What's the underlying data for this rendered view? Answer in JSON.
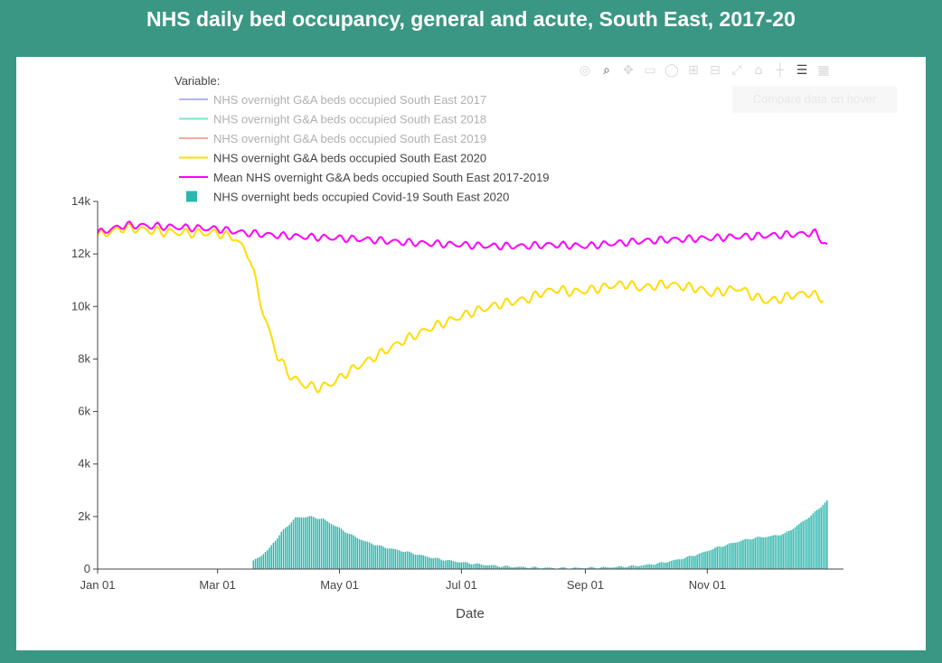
{
  "page": {
    "title": "NHS daily bed occupancy, general and acute, South East, 2017-20"
  },
  "modebar": {
    "icons": [
      "camera-icon",
      "zoom-icon",
      "pan-icon",
      "box-select-icon",
      "lasso-icon",
      "zoom-in-icon",
      "zoom-out-icon",
      "autoscale-icon",
      "reset-axes-icon",
      "spike-lines-icon",
      "compare-hover-icon",
      "plotly-logo-icon"
    ],
    "tooltip": "Compare data on hover"
  },
  "chart_data": {
    "type": "line",
    "title": "",
    "xlabel": "Date",
    "ylabel": "",
    "x_range": [
      "2020-01-01",
      "2020-12-31"
    ],
    "ylim": [
      0,
      14000
    ],
    "x_ticks": [
      {
        "date": "2020-01-01",
        "label": "Jan 01"
      },
      {
        "date": "2020-03-01",
        "label": "Mar 01"
      },
      {
        "date": "2020-05-01",
        "label": "May 01"
      },
      {
        "date": "2020-07-01",
        "label": "Jul 01"
      },
      {
        "date": "2020-09-01",
        "label": "Sep 01"
      },
      {
        "date": "2020-11-01",
        "label": "Nov 01"
      }
    ],
    "y_ticks": [
      {
        "value": 0,
        "label": "0"
      },
      {
        "value": 2000,
        "label": "2k"
      },
      {
        "value": 4000,
        "label": "4k"
      },
      {
        "value": 6000,
        "label": "6k"
      },
      {
        "value": 8000,
        "label": "8k"
      },
      {
        "value": 10000,
        "label": "10k"
      },
      {
        "value": 12000,
        "label": "12k"
      },
      {
        "value": 14000,
        "label": "14k"
      }
    ],
    "grid": false,
    "legend": {
      "title": "Variable:",
      "placement": "top-left"
    },
    "series": [
      {
        "name": "NHS overnight G&A beds occupied South East 2017",
        "type": "line",
        "color": "#636efa",
        "visible": false
      },
      {
        "name": "NHS overnight G&A beds occupied South East 2018",
        "type": "line",
        "color": "#00cc96",
        "visible": false
      },
      {
        "name": "NHS overnight G&A beds occupied South East 2019",
        "type": "line",
        "color": "#ef553b",
        "visible": false
      },
      {
        "name": "NHS overnight G&A beds occupied South East 2020",
        "type": "line",
        "color": "#ffdd00",
        "visible": true,
        "points": [
          [
            "2020-01-01",
            12700
          ],
          [
            "2020-01-15",
            13000
          ],
          [
            "2020-02-01",
            12850
          ],
          [
            "2020-02-15",
            12800
          ],
          [
            "2020-03-01",
            12800
          ],
          [
            "2020-03-10",
            12600
          ],
          [
            "2020-03-17",
            11900
          ],
          [
            "2020-03-24",
            9700
          ],
          [
            "2020-03-31",
            8100
          ],
          [
            "2020-04-07",
            7300
          ],
          [
            "2020-04-14",
            7000
          ],
          [
            "2020-04-21",
            6900
          ],
          [
            "2020-04-28",
            7100
          ],
          [
            "2020-05-05",
            7500
          ],
          [
            "2020-05-12",
            7800
          ],
          [
            "2020-05-19",
            8100
          ],
          [
            "2020-05-26",
            8400
          ],
          [
            "2020-06-02",
            8700
          ],
          [
            "2020-06-09",
            8950
          ],
          [
            "2020-06-16",
            9200
          ],
          [
            "2020-06-23",
            9400
          ],
          [
            "2020-06-30",
            9600
          ],
          [
            "2020-07-07",
            9800
          ],
          [
            "2020-07-14",
            9950
          ],
          [
            "2020-07-21",
            10100
          ],
          [
            "2020-07-28",
            10200
          ],
          [
            "2020-08-04",
            10300
          ],
          [
            "2020-08-11",
            10550
          ],
          [
            "2020-08-18",
            10650
          ],
          [
            "2020-08-25",
            10550
          ],
          [
            "2020-09-01",
            10600
          ],
          [
            "2020-09-08",
            10700
          ],
          [
            "2020-09-15",
            10800
          ],
          [
            "2020-09-22",
            10850
          ],
          [
            "2020-09-29",
            10700
          ],
          [
            "2020-10-06",
            10800
          ],
          [
            "2020-10-13",
            10850
          ],
          [
            "2020-10-20",
            10750
          ],
          [
            "2020-10-27",
            10700
          ],
          [
            "2020-11-03",
            10500
          ],
          [
            "2020-11-10",
            10600
          ],
          [
            "2020-11-17",
            10700
          ],
          [
            "2020-11-24",
            10400
          ],
          [
            "2020-12-01",
            10200
          ],
          [
            "2020-12-08",
            10300
          ],
          [
            "2020-12-15",
            10450
          ],
          [
            "2020-12-22",
            10500
          ],
          [
            "2020-12-29",
            10300
          ]
        ]
      },
      {
        "name": "Mean NHS overnight G&A beds occupied South East 2017-2019",
        "type": "line",
        "color": "#ff00ff",
        "visible": true,
        "points": [
          [
            "2020-01-01",
            12800
          ],
          [
            "2020-01-15",
            13100
          ],
          [
            "2020-02-01",
            13050
          ],
          [
            "2020-02-15",
            13000
          ],
          [
            "2020-03-01",
            12950
          ],
          [
            "2020-03-15",
            12800
          ],
          [
            "2020-04-01",
            12700
          ],
          [
            "2020-04-15",
            12650
          ],
          [
            "2020-05-01",
            12600
          ],
          [
            "2020-05-15",
            12550
          ],
          [
            "2020-06-01",
            12450
          ],
          [
            "2020-06-15",
            12400
          ],
          [
            "2020-07-01",
            12350
          ],
          [
            "2020-07-15",
            12300
          ],
          [
            "2020-08-01",
            12300
          ],
          [
            "2020-08-15",
            12350
          ],
          [
            "2020-09-01",
            12300
          ],
          [
            "2020-09-15",
            12400
          ],
          [
            "2020-10-01",
            12500
          ],
          [
            "2020-10-15",
            12550
          ],
          [
            "2020-11-01",
            12600
          ],
          [
            "2020-11-15",
            12650
          ],
          [
            "2020-12-01",
            12700
          ],
          [
            "2020-12-15",
            12750
          ],
          [
            "2020-12-25",
            12800
          ],
          [
            "2020-12-31",
            12300
          ]
        ]
      },
      {
        "name": "NHS overnight beds occupied Covid-19 South East 2020",
        "type": "bar",
        "color": "#2ab7ad",
        "visible": true,
        "points": [
          [
            "2020-03-19",
            300
          ],
          [
            "2020-03-26",
            700
          ],
          [
            "2020-04-02",
            1400
          ],
          [
            "2020-04-09",
            1950
          ],
          [
            "2020-04-16",
            2000
          ],
          [
            "2020-04-23",
            1900
          ],
          [
            "2020-04-30",
            1600
          ],
          [
            "2020-05-07",
            1300
          ],
          [
            "2020-05-14",
            1050
          ],
          [
            "2020-05-21",
            880
          ],
          [
            "2020-05-28",
            760
          ],
          [
            "2020-06-04",
            650
          ],
          [
            "2020-06-11",
            520
          ],
          [
            "2020-06-18",
            410
          ],
          [
            "2020-06-25",
            320
          ],
          [
            "2020-07-02",
            250
          ],
          [
            "2020-07-09",
            190
          ],
          [
            "2020-07-16",
            140
          ],
          [
            "2020-07-23",
            100
          ],
          [
            "2020-07-30",
            80
          ],
          [
            "2020-08-06",
            60
          ],
          [
            "2020-08-13",
            45
          ],
          [
            "2020-08-20",
            40
          ],
          [
            "2020-08-27",
            40
          ],
          [
            "2020-09-03",
            50
          ],
          [
            "2020-09-10",
            60
          ],
          [
            "2020-09-17",
            80
          ],
          [
            "2020-09-24",
            110
          ],
          [
            "2020-10-01",
            150
          ],
          [
            "2020-10-08",
            220
          ],
          [
            "2020-10-15",
            320
          ],
          [
            "2020-10-22",
            450
          ],
          [
            "2020-10-29",
            600
          ],
          [
            "2020-11-05",
            800
          ],
          [
            "2020-11-12",
            950
          ],
          [
            "2020-11-19",
            1100
          ],
          [
            "2020-11-26",
            1200
          ],
          [
            "2020-12-03",
            1250
          ],
          [
            "2020-12-10",
            1350
          ],
          [
            "2020-12-17",
            1700
          ],
          [
            "2020-12-24",
            2100
          ],
          [
            "2020-12-31",
            2600
          ]
        ]
      }
    ]
  }
}
